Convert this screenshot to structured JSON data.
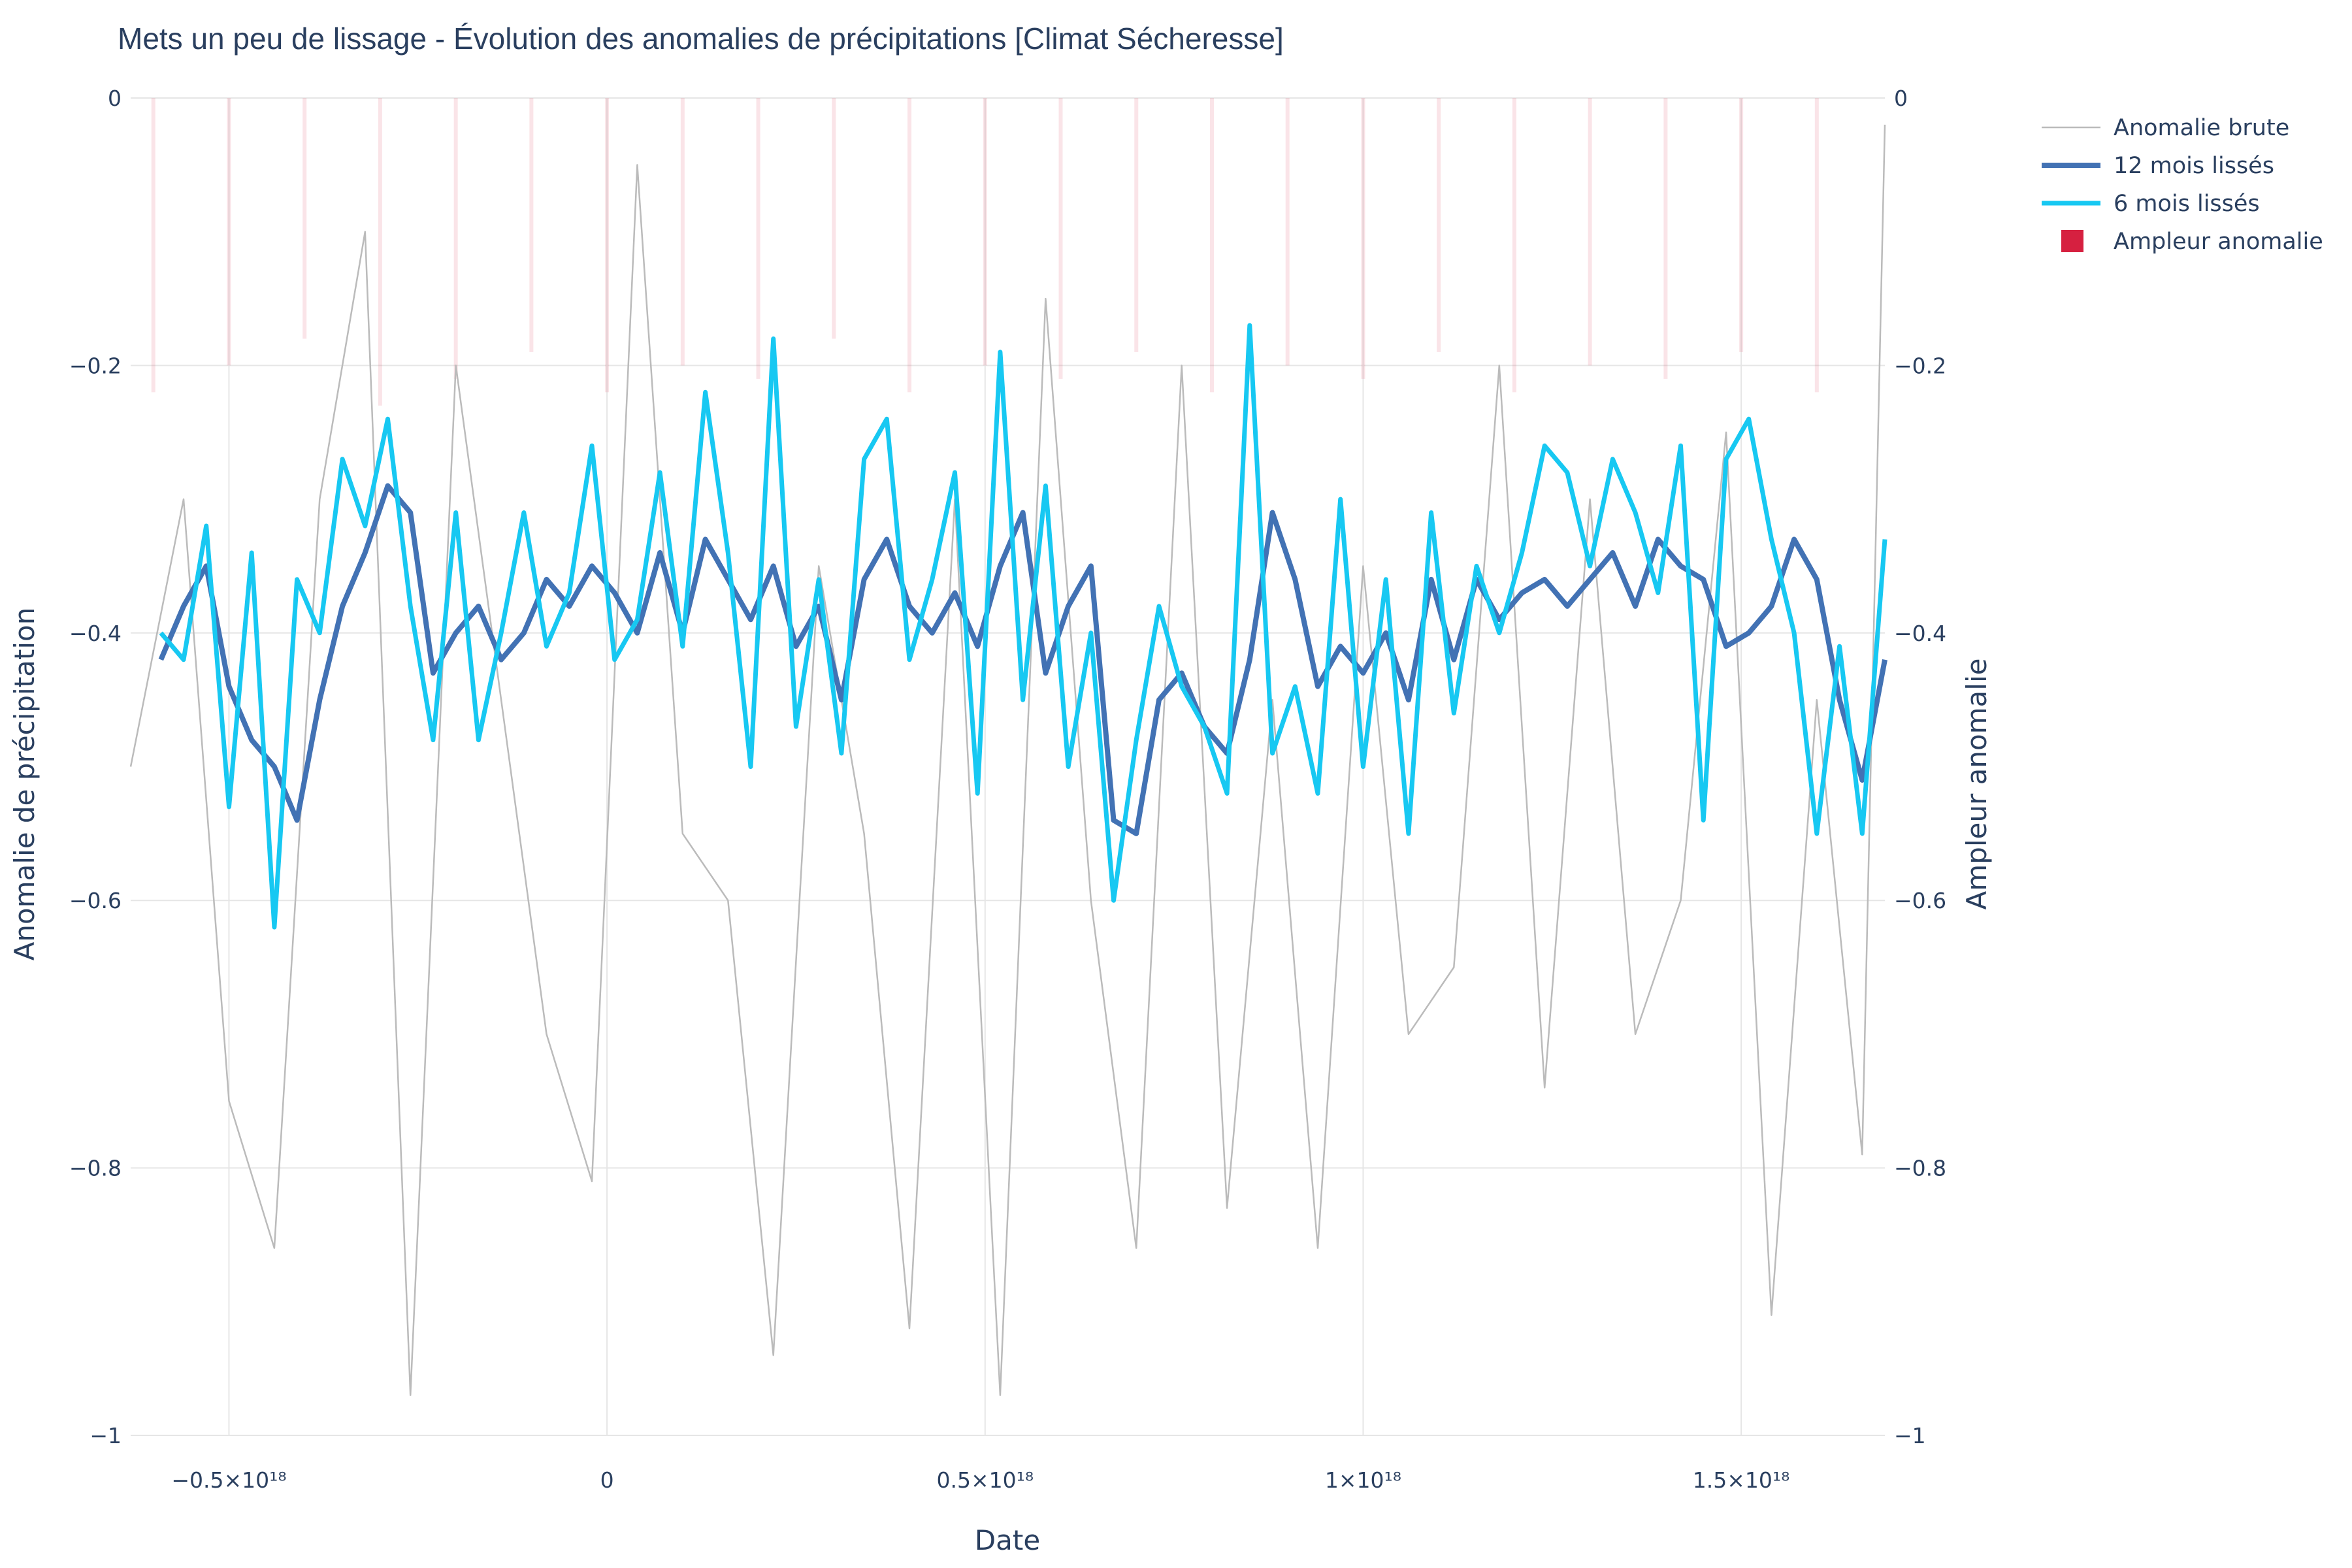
{
  "chart_data": {
    "type": "line",
    "title": "Mets un peu de lissage - Évolution des anomalies de précipitations [Climat Sécheresse]",
    "xlabel": "Date",
    "ylabel": "Anomalie de précipitation",
    "y2label": "Ampleur anomalie",
    "x_tick_values": [
      -5e+17,
      0,
      5e+17,
      1e+18,
      1.5e+18
    ],
    "x_tick_labels": [
      "−0.5×10¹⁸",
      "0",
      "0.5×10¹⁸",
      "1×10¹⁸",
      "1.5×10¹⁸"
    ],
    "xlim": [
      -6.3e+17,
      1.69e+18
    ],
    "y_tick_values": [
      0,
      -0.2,
      -0.4,
      -0.6,
      -0.8,
      -1
    ],
    "y_tick_labels": [
      "0",
      "−0.2",
      "−0.4",
      "−0.6",
      "−0.8",
      "−1"
    ],
    "ylim": [
      -1.0,
      0.0
    ],
    "y2_tick_labels": [
      "0",
      "−0.2",
      "−0.4",
      "−0.6",
      "−0.8",
      "−1"
    ],
    "grid": true,
    "legend_position": "top-right",
    "series": [
      {
        "name": "Anomalie brute",
        "color": "#bbbbbb",
        "x": [
          -6.3e+17,
          -5.6e+17,
          -5e+17,
          -4.4e+17,
          -3.8e+17,
          -3.2e+17,
          -2.6e+17,
          -2e+17,
          -1.4e+17,
          -8e+16,
          -2e+16,
          4e+16,
          1e+17,
          1.6e+17,
          2.2e+17,
          2.8e+17,
          3.4e+17,
          4e+17,
          4.6e+17,
          5.2e+17,
          5.8e+17,
          6.4e+17,
          7e+17,
          7.6e+17,
          8.2e+17,
          8.8e+17,
          9.4e+17,
          1e+18,
          1.06e+18,
          1.12e+18,
          1.18e+18,
          1.24e+18,
          1.3e+18,
          1.36e+18,
          1.42e+18,
          1.48e+18,
          1.54e+18,
          1.6e+18,
          1.66e+18,
          1.69e+18
        ],
        "values": [
          -0.5,
          -0.3,
          -0.75,
          -0.86,
          -0.3,
          -0.1,
          -0.97,
          -0.2,
          -0.45,
          -0.7,
          -0.81,
          -0.05,
          -0.55,
          -0.6,
          -0.94,
          -0.35,
          -0.55,
          -0.92,
          -0.3,
          -0.97,
          -0.15,
          -0.6,
          -0.86,
          -0.2,
          -0.83,
          -0.45,
          -0.86,
          -0.35,
          -0.7,
          -0.65,
          -0.2,
          -0.74,
          -0.3,
          -0.7,
          -0.6,
          -0.25,
          -0.91,
          -0.45,
          -0.79,
          -0.02
        ]
      },
      {
        "name": "12 mois lissés",
        "color": "#4272b4",
        "x": [
          -5.9e+17,
          -5.6e+17,
          -5.3e+17,
          -5e+17,
          -4.7e+17,
          -4.4e+17,
          -4.1e+17,
          -3.8e+17,
          -3.5e+17,
          -3.2e+17,
          -2.9e+17,
          -2.6e+17,
          -2.3e+17,
          -2e+17,
          -1.7e+17,
          -1.4e+17,
          -1.1e+17,
          -8e+16,
          -5e+16,
          -2e+16,
          1e+16,
          4e+16,
          7e+16,
          1e+17,
          1.3e+17,
          1.6e+17,
          1.9e+17,
          2.2e+17,
          2.5e+17,
          2.8e+17,
          3.1e+17,
          3.4e+17,
          3.7e+17,
          4e+17,
          4.3e+17,
          4.6e+17,
          4.9e+17,
          5.2e+17,
          5.5e+17,
          5.8e+17,
          6.1e+17,
          6.4e+17,
          6.7e+17,
          7e+17,
          7.3e+17,
          7.6e+17,
          7.9e+17,
          8.2e+17,
          8.5e+17,
          8.8e+17,
          9.1e+17,
          9.4e+17,
          9.7e+17,
          1e+18,
          1.03e+18,
          1.06e+18,
          1.09e+18,
          1.12e+18,
          1.15e+18,
          1.18e+18,
          1.21e+18,
          1.24e+18,
          1.27e+18,
          1.3e+18,
          1.33e+18,
          1.36e+18,
          1.39e+18,
          1.42e+18,
          1.45e+18,
          1.48e+18,
          1.51e+18,
          1.54e+18,
          1.57e+18,
          1.6e+18,
          1.63e+18,
          1.66e+18,
          1.69e+18
        ],
        "values": [
          -0.42,
          -0.38,
          -0.35,
          -0.44,
          -0.48,
          -0.5,
          -0.54,
          -0.45,
          -0.38,
          -0.34,
          -0.29,
          -0.31,
          -0.43,
          -0.4,
          -0.38,
          -0.42,
          -0.4,
          -0.36,
          -0.38,
          -0.35,
          -0.37,
          -0.4,
          -0.34,
          -0.4,
          -0.33,
          -0.36,
          -0.39,
          -0.35,
          -0.41,
          -0.38,
          -0.45,
          -0.36,
          -0.33,
          -0.38,
          -0.4,
          -0.37,
          -0.41,
          -0.35,
          -0.31,
          -0.43,
          -0.38,
          -0.35,
          -0.54,
          -0.55,
          -0.45,
          -0.43,
          -0.47,
          -0.49,
          -0.42,
          -0.31,
          -0.36,
          -0.44,
          -0.41,
          -0.43,
          -0.4,
          -0.45,
          -0.36,
          -0.42,
          -0.36,
          -0.39,
          -0.37,
          -0.36,
          -0.38,
          -0.36,
          -0.34,
          -0.38,
          -0.33,
          -0.35,
          -0.36,
          -0.41,
          -0.4,
          -0.38,
          -0.33,
          -0.36,
          -0.45,
          -0.51,
          -0.42
        ]
      },
      {
        "name": "6 mois lissés",
        "color": "#17c8f2",
        "x": [
          -5.9e+17,
          -5.6e+17,
          -5.3e+17,
          -5e+17,
          -4.7e+17,
          -4.4e+17,
          -4.1e+17,
          -3.8e+17,
          -3.5e+17,
          -3.2e+17,
          -2.9e+17,
          -2.6e+17,
          -2.3e+17,
          -2e+17,
          -1.7e+17,
          -1.4e+17,
          -1.1e+17,
          -8e+16,
          -5e+16,
          -2e+16,
          1e+16,
          4e+16,
          7e+16,
          1e+17,
          1.3e+17,
          1.6e+17,
          1.9e+17,
          2.2e+17,
          2.5e+17,
          2.8e+17,
          3.1e+17,
          3.4e+17,
          3.7e+17,
          4e+17,
          4.3e+17,
          4.6e+17,
          4.9e+17,
          5.2e+17,
          5.5e+17,
          5.8e+17,
          6.1e+17,
          6.4e+17,
          6.7e+17,
          7e+17,
          7.3e+17,
          7.6e+17,
          7.9e+17,
          8.2e+17,
          8.5e+17,
          8.8e+17,
          9.1e+17,
          9.4e+17,
          9.7e+17,
          1e+18,
          1.03e+18,
          1.06e+18,
          1.09e+18,
          1.12e+18,
          1.15e+18,
          1.18e+18,
          1.21e+18,
          1.24e+18,
          1.27e+18,
          1.3e+18,
          1.33e+18,
          1.36e+18,
          1.39e+18,
          1.42e+18,
          1.45e+18,
          1.48e+18,
          1.51e+18,
          1.54e+18,
          1.57e+18,
          1.6e+18,
          1.63e+18,
          1.66e+18,
          1.69e+18
        ],
        "values": [
          -0.4,
          -0.42,
          -0.32,
          -0.53,
          -0.34,
          -0.62,
          -0.36,
          -0.4,
          -0.27,
          -0.32,
          -0.24,
          -0.38,
          -0.48,
          -0.31,
          -0.48,
          -0.4,
          -0.31,
          -0.41,
          -0.37,
          -0.26,
          -0.42,
          -0.39,
          -0.28,
          -0.41,
          -0.22,
          -0.34,
          -0.5,
          -0.18,
          -0.47,
          -0.36,
          -0.49,
          -0.27,
          -0.24,
          -0.42,
          -0.36,
          -0.28,
          -0.52,
          -0.19,
          -0.45,
          -0.29,
          -0.5,
          -0.4,
          -0.6,
          -0.48,
          -0.38,
          -0.44,
          -0.47,
          -0.52,
          -0.17,
          -0.49,
          -0.44,
          -0.52,
          -0.3,
          -0.5,
          -0.36,
          -0.55,
          -0.31,
          -0.46,
          -0.35,
          -0.4,
          -0.34,
          -0.26,
          -0.28,
          -0.35,
          -0.27,
          -0.31,
          -0.37,
          -0.26,
          -0.54,
          -0.27,
          -0.24,
          -0.33,
          -0.4,
          -0.55,
          -0.41,
          -0.55,
          -0.33
        ]
      },
      {
        "name": "Ampleur anomalie",
        "color": "#d62040",
        "type": "bar",
        "axis": "y2",
        "note_values": "values are absolute anomaly magnitude shown as faint bars from 0",
        "x": [
          -6e+17,
          -5e+17,
          -4e+17,
          -3e+17,
          -2e+17,
          -1e+17,
          0,
          1e+17,
          2e+17,
          3e+17,
          4e+17,
          5e+17,
          6e+17,
          7e+17,
          8e+17,
          9e+17,
          1e+18,
          1.1e+18,
          1.2e+18,
          1.3e+18,
          1.4e+18,
          1.5e+18,
          1.6e+18
        ],
        "values": [
          0.22,
          0.2,
          0.18,
          0.23,
          0.21,
          0.19,
          0.22,
          0.2,
          0.21,
          0.18,
          0.22,
          0.2,
          0.21,
          0.19,
          0.22,
          0.2,
          0.21,
          0.19,
          0.22,
          0.2,
          0.21,
          0.19,
          0.22
        ]
      }
    ]
  }
}
